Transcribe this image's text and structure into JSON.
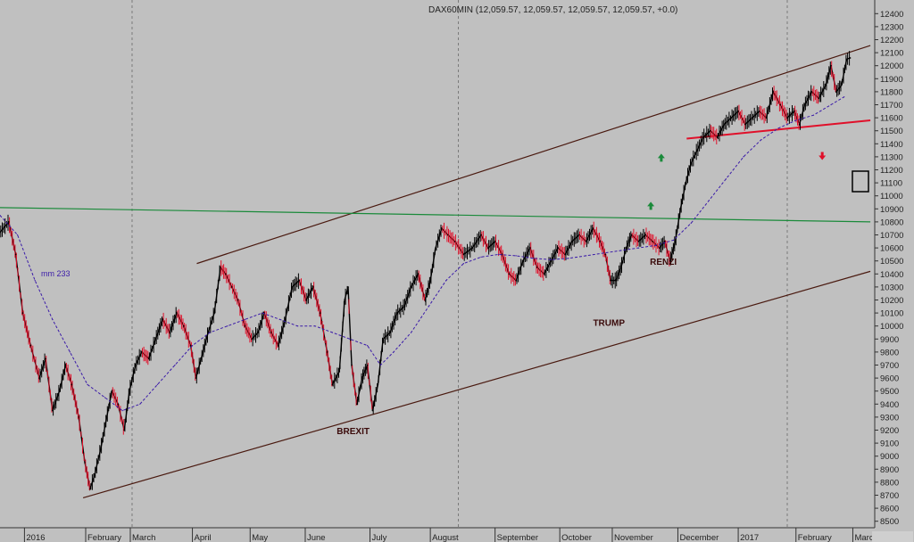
{
  "chart_data": {
    "type": "line",
    "title": "DAX60MIN (12,059.57, 12,059.57, 12,059.57, 12,059.57, +0.0)",
    "ylim": [
      8450,
      12450
    ],
    "y_ticks": [
      8500,
      8600,
      8700,
      8800,
      8900,
      9000,
      9100,
      9200,
      9300,
      9400,
      9500,
      9600,
      9700,
      9800,
      9900,
      10000,
      10100,
      10200,
      10300,
      10400,
      10500,
      10600,
      10700,
      10800,
      10900,
      11000,
      11100,
      11200,
      11300,
      11400,
      11500,
      11600,
      11700,
      11800,
      11900,
      12000,
      12100,
      12200,
      12300,
      12400
    ],
    "x_labels": [
      {
        "label": "2016",
        "t": 0.03
      },
      {
        "label": "February",
        "t": 0.1
      },
      {
        "label": "March",
        "t": 0.151
      },
      {
        "label": "April",
        "t": 0.222
      },
      {
        "label": "May",
        "t": 0.288
      },
      {
        "label": "June",
        "t": 0.351
      },
      {
        "label": "July",
        "t": 0.425
      },
      {
        "label": "August",
        "t": 0.494
      },
      {
        "label": "September",
        "t": 0.568
      },
      {
        "label": "October",
        "t": 0.642
      },
      {
        "label": "November",
        "t": 0.702
      },
      {
        "label": "December",
        "t": 0.777
      },
      {
        "label": "2017",
        "t": 0.846
      },
      {
        "label": "February",
        "t": 0.912
      },
      {
        "label": "Marc",
        "t": 0.977
      }
    ],
    "grid": {
      "vertical_dashed_at": [
        0.151,
        0.524,
        0.9
      ]
    },
    "series": [
      {
        "name": "DAX60MIN",
        "color": "#000000",
        "points": [
          [
            0.0,
            10720
          ],
          [
            0.01,
            10800
          ],
          [
            0.018,
            10550
          ],
          [
            0.026,
            10100
          ],
          [
            0.035,
            9850
          ],
          [
            0.045,
            9600
          ],
          [
            0.052,
            9750
          ],
          [
            0.06,
            9350
          ],
          [
            0.068,
            9500
          ],
          [
            0.075,
            9700
          ],
          [
            0.082,
            9550
          ],
          [
            0.09,
            9300
          ],
          [
            0.097,
            8950
          ],
          [
            0.103,
            8750
          ],
          [
            0.108,
            8850
          ],
          [
            0.115,
            9050
          ],
          [
            0.122,
            9300
          ],
          [
            0.128,
            9500
          ],
          [
            0.135,
            9400
          ],
          [
            0.142,
            9200
          ],
          [
            0.148,
            9500
          ],
          [
            0.155,
            9700
          ],
          [
            0.162,
            9800
          ],
          [
            0.17,
            9750
          ],
          [
            0.178,
            9900
          ],
          [
            0.186,
            10050
          ],
          [
            0.194,
            9950
          ],
          [
            0.202,
            10100
          ],
          [
            0.21,
            10000
          ],
          [
            0.218,
            9850
          ],
          [
            0.224,
            9600
          ],
          [
            0.23,
            9750
          ],
          [
            0.238,
            9950
          ],
          [
            0.245,
            10100
          ],
          [
            0.252,
            10450
          ],
          [
            0.258,
            10400
          ],
          [
            0.265,
            10300
          ],
          [
            0.272,
            10200
          ],
          [
            0.28,
            10000
          ],
          [
            0.288,
            9900
          ],
          [
            0.295,
            9950
          ],
          [
            0.302,
            10100
          ],
          [
            0.31,
            9950
          ],
          [
            0.318,
            9850
          ],
          [
            0.326,
            10050
          ],
          [
            0.334,
            10300
          ],
          [
            0.342,
            10350
          ],
          [
            0.35,
            10200
          ],
          [
            0.358,
            10300
          ],
          [
            0.366,
            10100
          ],
          [
            0.374,
            9800
          ],
          [
            0.38,
            9550
          ],
          [
            0.388,
            9650
          ],
          [
            0.394,
            10200
          ],
          [
            0.398,
            10300
          ],
          [
            0.402,
            9700
          ],
          [
            0.408,
            9400
          ],
          [
            0.414,
            9600
          ],
          [
            0.42,
            9700
          ],
          [
            0.426,
            9350
          ],
          [
            0.432,
            9550
          ],
          [
            0.438,
            9900
          ],
          [
            0.446,
            9950
          ],
          [
            0.454,
            10100
          ],
          [
            0.462,
            10150
          ],
          [
            0.47,
            10300
          ],
          [
            0.478,
            10400
          ],
          [
            0.486,
            10200
          ],
          [
            0.492,
            10350
          ],
          [
            0.498,
            10600
          ],
          [
            0.505,
            10750
          ],
          [
            0.512,
            10700
          ],
          [
            0.52,
            10650
          ],
          [
            0.53,
            10550
          ],
          [
            0.54,
            10600
          ],
          [
            0.55,
            10700
          ],
          [
            0.558,
            10600
          ],
          [
            0.566,
            10650
          ],
          [
            0.574,
            10550
          ],
          [
            0.582,
            10400
          ],
          [
            0.59,
            10350
          ],
          [
            0.598,
            10500
          ],
          [
            0.606,
            10600
          ],
          [
            0.614,
            10450
          ],
          [
            0.622,
            10400
          ],
          [
            0.63,
            10500
          ],
          [
            0.638,
            10600
          ],
          [
            0.646,
            10550
          ],
          [
            0.654,
            10650
          ],
          [
            0.662,
            10700
          ],
          [
            0.67,
            10650
          ],
          [
            0.678,
            10750
          ],
          [
            0.686,
            10650
          ],
          [
            0.692,
            10550
          ],
          [
            0.698,
            10350
          ],
          [
            0.704,
            10350
          ],
          [
            0.71,
            10450
          ],
          [
            0.716,
            10600
          ],
          [
            0.722,
            10700
          ],
          [
            0.73,
            10650
          ],
          [
            0.738,
            10700
          ],
          [
            0.746,
            10650
          ],
          [
            0.754,
            10600
          ],
          [
            0.76,
            10650
          ],
          [
            0.766,
            10500
          ],
          [
            0.772,
            10650
          ],
          [
            0.778,
            10900
          ],
          [
            0.784,
            11100
          ],
          [
            0.79,
            11250
          ],
          [
            0.797,
            11350
          ],
          [
            0.804,
            11450
          ],
          [
            0.812,
            11500
          ],
          [
            0.82,
            11450
          ],
          [
            0.828,
            11550
          ],
          [
            0.836,
            11600
          ],
          [
            0.844,
            11650
          ],
          [
            0.852,
            11550
          ],
          [
            0.86,
            11600
          ],
          [
            0.868,
            11650
          ],
          [
            0.876,
            11600
          ],
          [
            0.884,
            11800
          ],
          [
            0.892,
            11700
          ],
          [
            0.9,
            11600
          ],
          [
            0.908,
            11650
          ],
          [
            0.914,
            11550
          ],
          [
            0.92,
            11700
          ],
          [
            0.928,
            11800
          ],
          [
            0.936,
            11750
          ],
          [
            0.944,
            11850
          ],
          [
            0.95,
            12000
          ],
          [
            0.956,
            11800
          ],
          [
            0.962,
            11850
          ],
          [
            0.968,
            12050
          ],
          [
            0.972,
            12060
          ]
        ]
      },
      {
        "name": "mm 233",
        "color": "#3a1aa8",
        "style": "dashed",
        "points": [
          [
            0.0,
            10850
          ],
          [
            0.02,
            10700
          ],
          [
            0.04,
            10350
          ],
          [
            0.06,
            10050
          ],
          [
            0.08,
            9800
          ],
          [
            0.1,
            9550
          ],
          [
            0.12,
            9450
          ],
          [
            0.14,
            9350
          ],
          [
            0.16,
            9400
          ],
          [
            0.18,
            9550
          ],
          [
            0.2,
            9700
          ],
          [
            0.22,
            9850
          ],
          [
            0.24,
            9950
          ],
          [
            0.26,
            10000
          ],
          [
            0.28,
            10050
          ],
          [
            0.3,
            10100
          ],
          [
            0.32,
            10050
          ],
          [
            0.34,
            10000
          ],
          [
            0.36,
            10000
          ],
          [
            0.38,
            9950
          ],
          [
            0.4,
            9900
          ],
          [
            0.42,
            9850
          ],
          [
            0.435,
            9700
          ],
          [
            0.45,
            9800
          ],
          [
            0.47,
            9950
          ],
          [
            0.49,
            10150
          ],
          [
            0.51,
            10350
          ],
          [
            0.53,
            10480
          ],
          [
            0.55,
            10530
          ],
          [
            0.57,
            10550
          ],
          [
            0.59,
            10540
          ],
          [
            0.61,
            10520
          ],
          [
            0.63,
            10510
          ],
          [
            0.65,
            10520
          ],
          [
            0.67,
            10540
          ],
          [
            0.69,
            10560
          ],
          [
            0.71,
            10580
          ],
          [
            0.73,
            10600
          ],
          [
            0.75,
            10620
          ],
          [
            0.77,
            10660
          ],
          [
            0.79,
            10790
          ],
          [
            0.81,
            10960
          ],
          [
            0.83,
            11130
          ],
          [
            0.85,
            11300
          ],
          [
            0.87,
            11430
          ],
          [
            0.89,
            11520
          ],
          [
            0.91,
            11580
          ],
          [
            0.93,
            11620
          ],
          [
            0.95,
            11700
          ],
          [
            0.965,
            11760
          ]
        ]
      }
    ],
    "lines": [
      {
        "name": "upper-channel",
        "color": "#4a1a10",
        "from": [
          0.225,
          10480
        ],
        "to": [
          0.995,
          12155
        ]
      },
      {
        "name": "lower-channel",
        "color": "#4a1a10",
        "from": [
          0.095,
          8680
        ],
        "to": [
          0.995,
          10420
        ]
      },
      {
        "name": "horizontal-resistance",
        "color": "#1a8a3a",
        "from": [
          0.0,
          10910
        ],
        "to": [
          0.995,
          10800
        ]
      },
      {
        "name": "red-support",
        "color": "#e0102a",
        "from": [
          0.785,
          11440
        ],
        "to": [
          0.995,
          11580
        ]
      }
    ],
    "annotations": [
      {
        "text": "BREXIT",
        "t": 0.385,
        "value": 9170
      },
      {
        "text": "TRUMP",
        "t": 0.678,
        "value": 10000
      },
      {
        "text": "RENZI",
        "t": 0.743,
        "value": 10470
      },
      {
        "text": "mm 233",
        "t": 0.047,
        "value": 10380
      }
    ],
    "markers": [
      {
        "name": "green-up-arrow-1",
        "t": 0.744,
        "value": 10920,
        "color": "#1a8a3a"
      },
      {
        "name": "green-up-arrow-2",
        "t": 0.756,
        "value": 11290,
        "color": "#1a8a3a"
      },
      {
        "name": "red-down-arrow",
        "t": 0.94,
        "value": 11310,
        "color": "#e0102a"
      }
    ],
    "colors": {
      "background": "#c0c0c0",
      "grid": "#7a7a7a",
      "up_bar": "#000000",
      "down_bar": "#e0102a"
    }
  }
}
